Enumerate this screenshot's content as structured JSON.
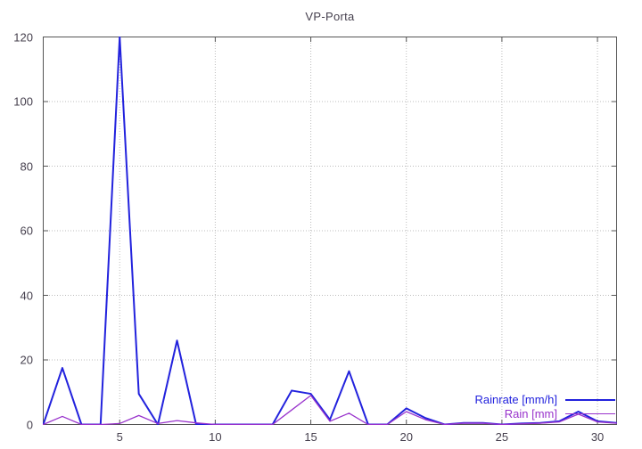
{
  "chart_data": {
    "type": "line",
    "title": "VP-Porta",
    "xlabel": "",
    "ylabel": "",
    "xlim": [
      1,
      31
    ],
    "ylim": [
      0,
      120
    ],
    "x_ticks": [
      5,
      10,
      15,
      20,
      25,
      30
    ],
    "y_ticks": [
      0,
      20,
      40,
      60,
      80,
      100,
      120
    ],
    "grid": "dotted-major",
    "legend_position": "bottom-right-inside",
    "x": [
      1,
      2,
      3,
      4,
      5,
      6,
      7,
      8,
      9,
      10,
      11,
      12,
      13,
      14,
      15,
      16,
      17,
      18,
      19,
      20,
      21,
      22,
      23,
      24,
      25,
      26,
      27,
      28,
      29,
      30,
      31
    ],
    "series": [
      {
        "name": "Rainrate [mm/h]",
        "color": "#2222dd",
        "width": 2,
        "values": [
          0,
          17.5,
          0,
          0,
          120,
          9.5,
          0,
          26,
          0,
          0,
          0,
          0,
          0,
          10.5,
          9.5,
          1.5,
          16.5,
          0,
          0,
          5,
          2,
          0,
          0.5,
          0.5,
          0,
          0.3,
          0.5,
          1,
          4,
          1,
          0.5
        ]
      },
      {
        "name": "Rain [mm]",
        "color": "#9933cc",
        "width": 1.3,
        "values": [
          0,
          2.5,
          0,
          0,
          0.3,
          2.8,
          0.3,
          1.2,
          0.5,
          0,
          0,
          0,
          0,
          4.5,
          9,
          1,
          3.5,
          0,
          0,
          4,
          1.5,
          0,
          0.4,
          0.4,
          0,
          0.2,
          0.4,
          0.8,
          3.2,
          0.8,
          0.4
        ]
      }
    ],
    "colors": {
      "grid": "#bcbcbc",
      "border": "#555555",
      "tick_label": "#46404e",
      "title": "#46404e",
      "background": "#ffffff"
    }
  }
}
